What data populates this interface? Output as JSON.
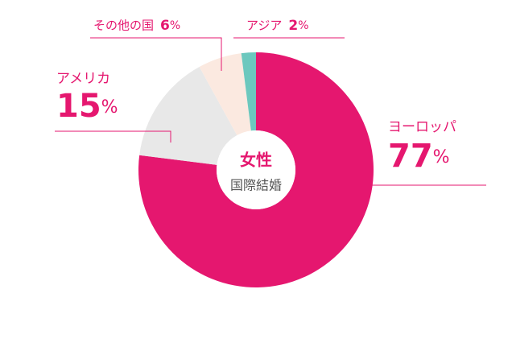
{
  "chart_data": {
    "type": "donut",
    "center_title": "女性",
    "center_subtitle": "国際結婚",
    "categories": [
      "ヨーロッパ",
      "アメリカ",
      "その他の国",
      "アジア"
    ],
    "values": [
      77,
      15,
      6,
      2
    ],
    "value_labels": [
      "77%",
      "15%",
      "6%",
      "2%"
    ],
    "colors": [
      "#e5176f",
      "#e8e8e8",
      "#fbe9e0",
      "#6cc8be"
    ]
  }
}
